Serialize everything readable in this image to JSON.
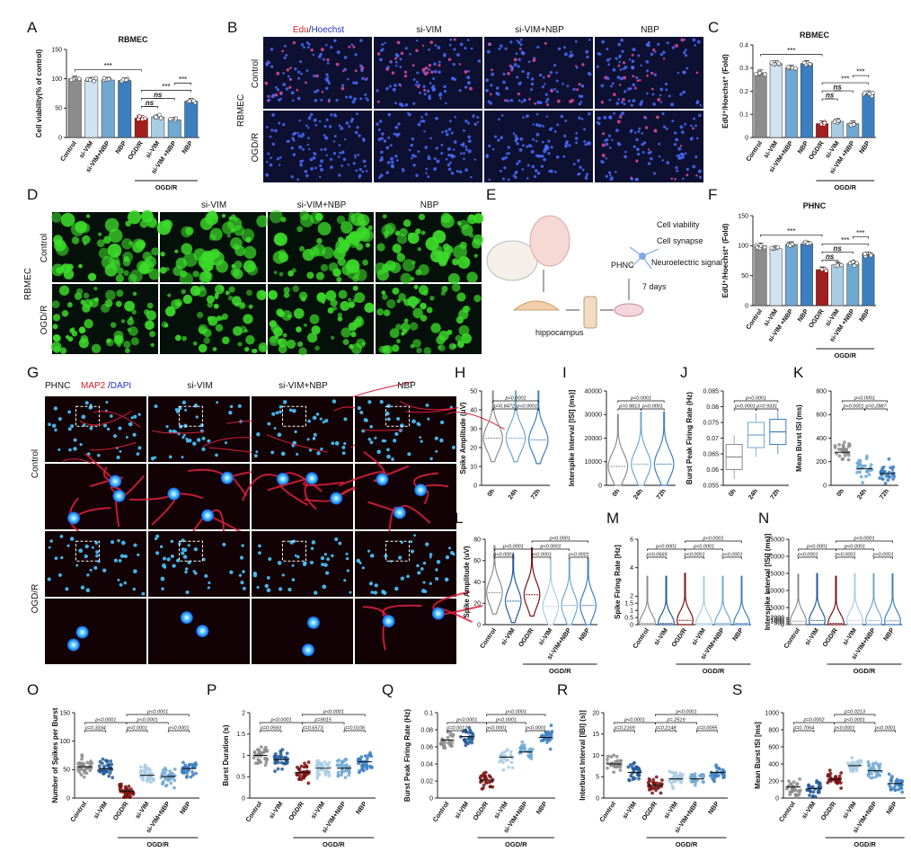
{
  "colors": {
    "gray": "#8c8c8c",
    "light1": "#cfe3f0",
    "light2": "#a9cde3",
    "mid": "#6fa8d1",
    "blue": "#3c7fbf",
    "dark": "#225b96",
    "red": "#a31e1e",
    "redDark": "#7a1010"
  },
  "panel_letters": [
    "A",
    "B",
    "C",
    "D",
    "E",
    "F",
    "G",
    "H",
    "I",
    "J",
    "K",
    "L",
    "M",
    "N",
    "O",
    "P",
    "Q",
    "R",
    "S"
  ],
  "group_label": "OGD/R",
  "micro": {
    "B": {
      "cols": [
        "Edu/Hoechst",
        "si-VIM",
        "si-VIM+NBP",
        "NBP"
      ],
      "rows": [
        "Control",
        "OGD/R"
      ],
      "side": "RBMEC"
    },
    "D": {
      "cols": [
        "",
        "si-VIM",
        "si-VIM+NBP",
        "NBP"
      ],
      "rows": [
        "Control",
        "OGD/R"
      ],
      "side": "RBMEC"
    },
    "G": {
      "cols": [
        "PHNC",
        "MAP2 /DAPI",
        "si-VIM",
        "si-VIM+NBP",
        "NBP"
      ],
      "rows": [
        "Control",
        "OGD/R"
      ]
    }
  },
  "schematic": {
    "labels": [
      "Cell viability",
      "Cell synapse",
      "PHNC",
      "Neuroelectric signal",
      "7 days",
      "hippocampus"
    ]
  },
  "chart_data": [
    {
      "id": "A",
      "type": "bar",
      "title": "RBMEC",
      "ylabel": "Cell viability(% of control)",
      "ylim": [
        0,
        150
      ],
      "yticks": [
        0,
        50,
        100,
        150
      ],
      "categories": [
        "Control",
        "si-VIM",
        "si-VIM+NBP",
        "NBP",
        "OGD/R",
        "si-VIM",
        "si-VIM +NBP",
        "NBP"
      ],
      "values": [
        100,
        98,
        98,
        97,
        33,
        35,
        30,
        62
      ],
      "sig": [
        {
          "a": 0,
          "b": 4,
          "t": "***"
        },
        {
          "a": 4,
          "b": 5,
          "t": "ns"
        },
        {
          "a": 4,
          "b": 6,
          "t": "ns"
        },
        {
          "a": 4,
          "b": 7,
          "t": "***"
        },
        {
          "a": 6,
          "b": 7,
          "t": "***"
        }
      ]
    },
    {
      "id": "C",
      "type": "bar",
      "title": "RBMEC",
      "ylabel": "EdU⁺/Hoechst⁺ (Fold)",
      "ylim": [
        0,
        0.4
      ],
      "yticks": [
        0.0,
        0.1,
        0.2,
        0.3,
        0.4
      ],
      "categories": [
        "Control",
        "si-VIM",
        "si-VIM+NBP",
        "NBP",
        "OGD/R",
        "si-VIM",
        "si-VIM +NBP",
        "NBP"
      ],
      "values": [
        0.28,
        0.32,
        0.3,
        0.32,
        0.06,
        0.07,
        0.06,
        0.19
      ],
      "sig": [
        {
          "a": 0,
          "b": 4,
          "t": "***"
        },
        {
          "a": 4,
          "b": 5,
          "t": "ns"
        },
        {
          "a": 4,
          "b": 6,
          "t": "ns"
        },
        {
          "a": 4,
          "b": 7,
          "t": "***"
        },
        {
          "a": 6,
          "b": 7,
          "t": "***"
        }
      ]
    },
    {
      "id": "F",
      "type": "bar",
      "title": "PHNC",
      "ylabel": "EdU⁺/Hoechst⁺ (Fold)",
      "ylim": [
        0,
        150
      ],
      "yticks": [
        0,
        50,
        100,
        150
      ],
      "categories": [
        "Control",
        "si-VIM",
        "si-VIM +NBP",
        "NBP",
        "OGD/R",
        "si-VIM",
        "si-VIM +NBP",
        "NBP"
      ],
      "values": [
        100,
        95,
        102,
        103,
        60,
        68,
        70,
        85
      ],
      "sig": [
        {
          "a": 0,
          "b": 4,
          "t": "***"
        },
        {
          "a": 4,
          "b": 5,
          "t": "ns"
        },
        {
          "a": 4,
          "b": 6,
          "t": "ns"
        },
        {
          "a": 4,
          "b": 7,
          "t": "***"
        },
        {
          "a": 6,
          "b": 7,
          "t": "***"
        }
      ]
    },
    {
      "id": "H",
      "type": "violin",
      "ylabel": "Spike Amplitude (uV)",
      "ylim": [
        0,
        50
      ],
      "yticks": [
        0,
        10,
        20,
        30,
        40,
        50
      ],
      "categories": [
        "0h",
        "24h",
        "72h"
      ],
      "medians": [
        25,
        25,
        24
      ],
      "pvals": [
        {
          "a": 0,
          "b": 1,
          "t": "p=0.8472"
        },
        {
          "a": 1,
          "b": 2,
          "t": "p<0.0001"
        },
        {
          "a": 0,
          "b": 2,
          "t": "p<0.0001"
        }
      ]
    },
    {
      "id": "I",
      "type": "violin",
      "ylabel": "Interspike Interval [ISI] (ms)]",
      "ylim": [
        0,
        40000
      ],
      "yticks": [
        0,
        10000,
        20000,
        30000,
        40000
      ],
      "categories": [
        "0h",
        "24h",
        "72h"
      ],
      "medians": [
        8000,
        9000,
        9000
      ],
      "pvals": [
        {
          "a": 0,
          "b": 1,
          "t": "p=0.9813"
        },
        {
          "a": 1,
          "b": 2,
          "t": "p<0.0001"
        },
        {
          "a": 0,
          "b": 2,
          "t": "p<0.0001"
        }
      ]
    },
    {
      "id": "J",
      "type": "box",
      "ylabel": "Burst Peak Firing Rate (Hz)",
      "ylim": [
        0.055,
        0.085
      ],
      "yticks": [
        0.055,
        0.06,
        0.065,
        0.07,
        0.075,
        0.08,
        0.085
      ],
      "categories": [
        "0h",
        "24h",
        "72h"
      ],
      "medians": [
        0.064,
        0.071,
        0.072
      ],
      "pvals": [
        {
          "a": 0,
          "b": 1,
          "t": "p<0.0001"
        },
        {
          "a": 1,
          "b": 2,
          "t": "p=0.9331"
        },
        {
          "a": 0,
          "b": 2,
          "t": "p<0.0001"
        }
      ]
    },
    {
      "id": "K",
      "type": "scatter",
      "ylabel": "Mean Burst ISI (ms)",
      "ylim": [
        0,
        800
      ],
      "yticks": [
        0,
        200,
        400,
        600,
        800
      ],
      "categories": [
        "0h",
        "24h",
        "72h"
      ],
      "means": [
        280,
        140,
        100
      ],
      "pvals": [
        {
          "a": 0,
          "b": 1,
          "t": "p<0.0001"
        },
        {
          "a": 1,
          "b": 2,
          "t": "p=0.2887"
        },
        {
          "a": 0,
          "b": 2,
          "t": "p<0.0001"
        }
      ]
    },
    {
      "id": "L",
      "type": "violin",
      "ylabel": "Spike Amplitude (uV)",
      "ylim": [
        0,
        80
      ],
      "yticks": [
        0,
        20,
        40,
        60,
        80
      ],
      "categories": [
        "Control",
        "si-VIM",
        "OGD/R",
        "si-VIM",
        "si-VIM+NBP",
        "NBP"
      ],
      "medians": [
        30,
        22,
        28,
        17,
        18,
        18
      ],
      "pvals": [
        {
          "a": 0,
          "b": 1,
          "t": "p<0.0001"
        },
        {
          "a": 0,
          "b": 2,
          "t": "p<0.0001"
        },
        {
          "a": 2,
          "b": 3,
          "t": "p<0.0001"
        },
        {
          "a": 2,
          "b": 4,
          "t": "p<0.0001"
        },
        {
          "a": 4,
          "b": 5,
          "t": "p<0.0001"
        },
        {
          "a": 2,
          "b": 5,
          "t": "p<0.0001"
        }
      ]
    },
    {
      "id": "M",
      "type": "violin",
      "ylabel": "Spike Firing Rate [Hz]",
      "ylim": [
        0,
        6
      ],
      "yticks": [
        0,
        0.5,
        1.0,
        1.5,
        2,
        4,
        6
      ],
      "categories": [
        "Control",
        "si-VIM",
        "OGD/R",
        "si-VIM",
        "si-VIM+NBP",
        "NBP"
      ],
      "medians": [
        0.1,
        0.1,
        0.3,
        0.1,
        0.1,
        0.1
      ],
      "pvals": [
        {
          "a": 0,
          "b": 1,
          "t": "p=0.0669"
        },
        {
          "a": 0,
          "b": 2,
          "t": "p<0.0001"
        },
        {
          "a": 2,
          "b": 3,
          "t": "p<0.0001"
        },
        {
          "a": 2,
          "b": 4,
          "t": "p<0.0001"
        },
        {
          "a": 4,
          "b": 5,
          "t": "p<0.0001"
        },
        {
          "a": 2,
          "b": 5,
          "t": "p<0.0001"
        }
      ]
    },
    {
      "id": "N",
      "type": "violin",
      "ylabel": "Interspike Interval [ISI] (ms)]",
      "ylim": [
        0,
        25000
      ],
      "yticks": [
        0,
        500,
        1000,
        1500,
        2000,
        5000,
        10000,
        15000,
        20000,
        25000
      ],
      "categories": [
        "Control",
        "si-VIM",
        "OGD/R",
        "si-VIM",
        "si-VIM+NBP",
        "NBP"
      ],
      "medians": [
        1000,
        1200,
        400,
        1200,
        1200,
        1100
      ],
      "pvals": [
        {
          "a": 0,
          "b": 1,
          "t": "p<0.0001"
        },
        {
          "a": 0,
          "b": 2,
          "t": "p<0.0001"
        },
        {
          "a": 2,
          "b": 3,
          "t": "p<0.0001"
        },
        {
          "a": 2,
          "b": 4,
          "t": "p<0.0001"
        },
        {
          "a": 4,
          "b": 5,
          "t": "p<0.0001"
        },
        {
          "a": 2,
          "b": 5,
          "t": "p<0.0001"
        }
      ]
    },
    {
      "id": "O",
      "type": "scatter",
      "ylabel": "Number of Spikes per Burst",
      "ylim": [
        0,
        150
      ],
      "yticks": [
        0,
        50,
        100,
        150
      ],
      "categories": [
        "Control",
        "si-VIM",
        "OGD/R",
        "si-VIM",
        "si-VIM+NBP",
        "NBP"
      ],
      "means": [
        55,
        52,
        12,
        40,
        38,
        52
      ],
      "pvals": [
        {
          "a": 0,
          "b": 1,
          "t": "p=0.3334"
        },
        {
          "a": 0,
          "b": 2,
          "t": "p<0.0001"
        },
        {
          "a": 2,
          "b": 3,
          "t": "p<0.0001"
        },
        {
          "a": 2,
          "b": 4,
          "t": "p<0.0001"
        },
        {
          "a": 2,
          "b": 5,
          "t": "p<0.0001"
        },
        {
          "a": 4,
          "b": 5,
          "t": "p<0.0001"
        }
      ]
    },
    {
      "id": "P",
      "type": "scatter",
      "ylabel": "Burst Duration (s)",
      "ylim": [
        0,
        2.0
      ],
      "yticks": [
        0.0,
        0.5,
        1.0,
        1.5,
        2.0
      ],
      "categories": [
        "Control",
        "si-VIM",
        "OGD/R",
        "si-VIM",
        "si-VIM+NBP",
        "NBP"
      ],
      "means": [
        1.0,
        0.9,
        0.6,
        0.7,
        0.7,
        0.85
      ],
      "pvals": [
        {
          "a": 0,
          "b": 1,
          "t": "p=0.0593"
        },
        {
          "a": 0,
          "b": 2,
          "t": "p<0.0001"
        },
        {
          "a": 2,
          "b": 3,
          "t": "p=0.6573"
        },
        {
          "a": 2,
          "b": 4,
          "t": "p=9015"
        },
        {
          "a": 2,
          "b": 5,
          "t": "p<0.0001"
        },
        {
          "a": 4,
          "b": 5,
          "t": "p=0.0106"
        }
      ]
    },
    {
      "id": "Q",
      "type": "scatter",
      "ylabel": "Burst Peak Firing Rate (Hz)",
      "ylim": [
        0.0,
        0.1
      ],
      "yticks": [
        0.0,
        0.02,
        0.04,
        0.06,
        0.08,
        0.1
      ],
      "categories": [
        "Control",
        "si-VIM",
        "OGD/R",
        "si-VIM",
        "si-VIM+NBP",
        "NBP"
      ],
      "means": [
        0.068,
        0.072,
        0.021,
        0.048,
        0.054,
        0.071
      ],
      "pvals": [
        {
          "a": 0,
          "b": 1,
          "t": "p=0.0012"
        },
        {
          "a": 0,
          "b": 2,
          "t": "p<0.0001"
        },
        {
          "a": 2,
          "b": 3,
          "t": "p<0.0001"
        },
        {
          "a": 2,
          "b": 4,
          "t": "p<0.0001"
        },
        {
          "a": 2,
          "b": 5,
          "t": "p<0.0001"
        },
        {
          "a": 4,
          "b": 5,
          "t": "p<0.0001"
        }
      ]
    },
    {
      "id": "R",
      "type": "scatter",
      "ylabel": "Interburst Interval [IBI] (s)]",
      "ylim": [
        0,
        20
      ],
      "yticks": [
        0,
        5,
        10,
        15,
        20
      ],
      "categories": [
        "Control",
        "si-VIM",
        "OGD/R",
        "si-VIM",
        "si-VIM+NBP",
        "NBP"
      ],
      "means": [
        8,
        6,
        3,
        4.5,
        4.5,
        6
      ],
      "pvals": [
        {
          "a": 0,
          "b": 1,
          "t": "p=0.2169"
        },
        {
          "a": 0,
          "b": 2,
          "t": "p<0.0001"
        },
        {
          "a": 2,
          "b": 3,
          "t": "p=0.2148"
        },
        {
          "a": 2,
          "b": 4,
          "t": "p=.2519"
        },
        {
          "a": 2,
          "b": 5,
          "t": "p<0.0001"
        },
        {
          "a": 4,
          "b": 5,
          "t": "p=0.0095"
        }
      ]
    },
    {
      "id": "S",
      "type": "scatter",
      "ylabel": "Mean Burst ISI [ms]",
      "ylim": [
        0,
        1000
      ],
      "yticks": [
        0,
        200,
        400,
        600,
        800,
        1000
      ],
      "categories": [
        "Control",
        "si-VIM",
        "OGD/R",
        "si-VIM",
        "si-VIM+NBP",
        "NBP"
      ],
      "means": [
        130,
        110,
        220,
        380,
        320,
        170
      ],
      "pvals": [
        {
          "a": 0,
          "b": 1,
          "t": "p=0.7064"
        },
        {
          "a": 0,
          "b": 2,
          "t": "p=0.0002"
        },
        {
          "a": 2,
          "b": 3,
          "t": "p<0.0001"
        },
        {
          "a": 2,
          "b": 4,
          "t": "p<0.0001"
        },
        {
          "a": 4,
          "b": 5,
          "t": "p<0.0001"
        },
        {
          "a": 2,
          "b": 4,
          "t": "p=0.0213"
        }
      ]
    }
  ]
}
